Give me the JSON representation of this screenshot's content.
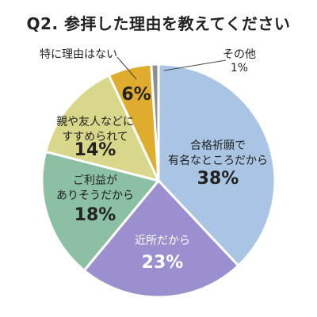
{
  "chart_data": {
    "type": "pie",
    "title": "Q2. 参拝した理由を教えてください",
    "slices": [
      {
        "label_lines": [
          "合格祈願で",
          "有名なところだから"
        ],
        "value": 38,
        "value_label": "38%",
        "color": "#a9c5e3"
      },
      {
        "label_lines": [
          "近所だから"
        ],
        "value": 23,
        "value_label": "23%",
        "color": "#9b8fcf"
      },
      {
        "label_lines": [
          "ご利益が",
          "ありそうだから"
        ],
        "value": 18,
        "value_label": "18%",
        "color": "#8cc0a4"
      },
      {
        "label_lines": [
          "親や友人などに",
          "すすめられて"
        ],
        "value": 14,
        "value_label": "14%",
        "color": "#d9d78a"
      },
      {
        "label_lines": [
          "特に理由はない"
        ],
        "value": 6,
        "value_label": "6%",
        "color": "#e0ac2e"
      },
      {
        "label_lines": [
          "その他"
        ],
        "value": 1,
        "value_label": "1%",
        "color": "#8f8f8f"
      }
    ]
  }
}
